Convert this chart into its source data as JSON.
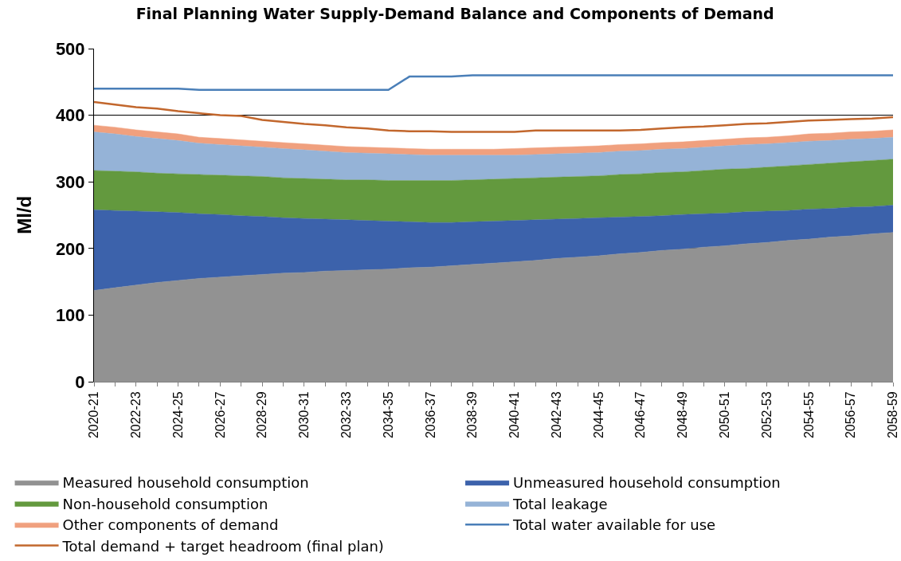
{
  "chart_data": {
    "type": "area",
    "title": "Final Planning Water Supply-Demand Balance and Components of Demand",
    "ylabel": "Ml/d",
    "categories": [
      "2020-21",
      null,
      "2022-23",
      null,
      "2024-25",
      null,
      "2026-27",
      null,
      "2028-29",
      null,
      "2030-31",
      null,
      "2032-33",
      null,
      "2034-35",
      null,
      "2036-37",
      null,
      "2038-39",
      null,
      "2040-41",
      null,
      "2042-43",
      null,
      "2044-45",
      null,
      "2046-47",
      null,
      "2048-49",
      null,
      "2050-51",
      null,
      "2052-53",
      null,
      "2054-55",
      null,
      "2056-57",
      null,
      "2058-59"
    ],
    "stacked": true,
    "ylim": [
      0,
      500
    ],
    "yticks": [
      0,
      100,
      200,
      300,
      400,
      500
    ],
    "grid": "y",
    "legend": "bottom",
    "series": [
      {
        "name": "Measured household consumption",
        "color": "#929292",
        "values": [
          137,
          141,
          145,
          149,
          152,
          155,
          157,
          159,
          161,
          163,
          164,
          166,
          167,
          168,
          169,
          171,
          172,
          174,
          176,
          178,
          180,
          182,
          185,
          187,
          189,
          192,
          194,
          197,
          199,
          202,
          204,
          207,
          209,
          212,
          214,
          217,
          219,
          222,
          224
        ]
      },
      {
        "name": "Unmeasured household consumption",
        "color": "#3c62ab",
        "values": [
          121,
          116,
          111,
          106,
          102,
          97,
          94,
          90,
          87,
          83,
          81,
          78,
          76,
          74,
          72,
          69,
          67,
          65,
          64,
          63,
          62,
          61,
          59,
          58,
          57,
          55,
          54,
          52,
          52,
          50,
          49,
          48,
          47,
          45,
          45,
          43,
          43,
          41,
          41
        ]
      },
      {
        "name": "Non-household consumption",
        "color": "#63993e",
        "values": [
          59,
          59,
          59,
          58,
          58,
          59,
          59,
          60,
          60,
          60,
          60,
          60,
          60,
          61,
          61,
          62,
          63,
          63,
          63,
          63,
          63,
          63,
          63,
          63,
          63,
          64,
          64,
          65,
          64,
          65,
          66,
          65,
          66,
          67,
          67,
          68,
          68,
          69,
          69
        ]
      },
      {
        "name": "Total leakage",
        "color": "#95b3d7",
        "values": [
          58,
          56,
          53,
          52,
          50,
          47,
          46,
          45,
          44,
          44,
          43,
          42,
          41,
          40,
          40,
          39,
          38,
          38,
          37,
          36,
          35,
          35,
          35,
          35,
          35,
          35,
          35,
          35,
          35,
          35,
          35,
          36,
          35,
          35,
          35,
          34,
          34,
          33,
          33
        ]
      },
      {
        "name": "Other components of demand",
        "color": "#f0a07e",
        "values": [
          10,
          10,
          10,
          10,
          10,
          9,
          9,
          9,
          9,
          9,
          9,
          9,
          9,
          9,
          9,
          9,
          9,
          9,
          9,
          9,
          10,
          10,
          10,
          10,
          10,
          10,
          10,
          10,
          10,
          10,
          10,
          10,
          10,
          10,
          11,
          11,
          11,
          11,
          11
        ]
      },
      {
        "name": "Total water available for use",
        "type": "line",
        "color": "#4a7fb8",
        "values": [
          440,
          440,
          440,
          440,
          440,
          438,
          438,
          438,
          438,
          438,
          438,
          438,
          438,
          438,
          438,
          458,
          458,
          458,
          460,
          460,
          460,
          460,
          460,
          460,
          460,
          460,
          460,
          460,
          460,
          460,
          460,
          460,
          460,
          460,
          460,
          460,
          460,
          460,
          460
        ]
      },
      {
        "name": "Total demand + target headroom (final plan)",
        "type": "line",
        "color": "#c2672d",
        "values": [
          420,
          416,
          412,
          410,
          406,
          403,
          400,
          399,
          393,
          390,
          387,
          385,
          382,
          380,
          377,
          376,
          376,
          375,
          375,
          375,
          375,
          377,
          377,
          377,
          377,
          377,
          378,
          380,
          382,
          383,
          385,
          387,
          388,
          390,
          392,
          393,
          394,
          395,
          397
        ]
      }
    ]
  }
}
